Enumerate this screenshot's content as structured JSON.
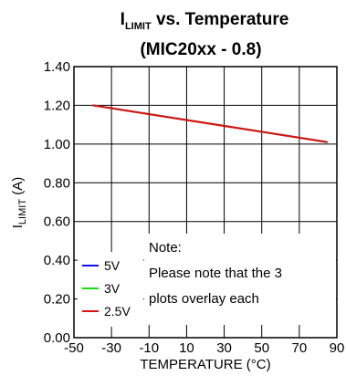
{
  "chart_data": {
    "type": "line",
    "title_main": "I",
    "title_sub": "LIMIT",
    "title_rest": " vs. Temperature",
    "title_line2": "(MIC20xx - 0.8)",
    "xlabel": "TEMPERATURE (°C)",
    "ylabel_main": "I",
    "ylabel_sub": "LIMIT",
    "ylabel_rest": " (A)",
    "xlim": [
      -50,
      90
    ],
    "ylim": [
      0.0,
      1.4
    ],
    "x_ticks": [
      -50,
      -30,
      -10,
      10,
      30,
      50,
      70,
      90
    ],
    "y_ticks": [
      0.0,
      0.2,
      0.4,
      0.6,
      0.8,
      1.0,
      1.2,
      1.4
    ],
    "y_tick_labels": [
      "0.00",
      "0.20",
      "0.40",
      "0.60",
      "0.80",
      "1.00",
      "1.20",
      "1.40"
    ],
    "grid": true,
    "series": [
      {
        "name": "5V",
        "color": "#1010ff",
        "x": [
          -40,
          85
        ],
        "y": [
          1.2,
          1.01
        ]
      },
      {
        "name": "3V",
        "color": "#10e010",
        "x": [
          -40,
          85
        ],
        "y": [
          1.2,
          1.01
        ]
      },
      {
        "name": "2.5V",
        "color": "#e01010",
        "x": [
          -40,
          85
        ],
        "y": [
          1.2,
          1.01
        ]
      }
    ],
    "legend_position": "bottom-left",
    "note_lines": [
      "Note:",
      "Please note that the 3",
      "plots overlay each"
    ]
  }
}
